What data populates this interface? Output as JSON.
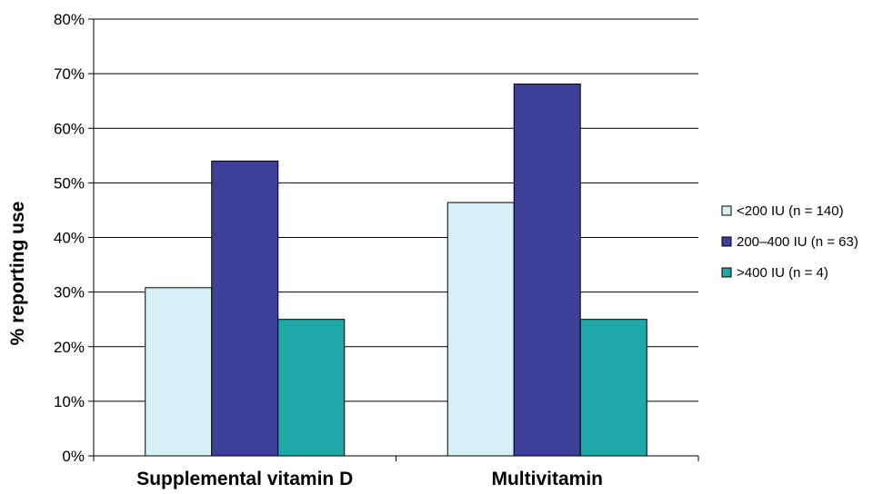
{
  "chart_data": {
    "type": "bar",
    "title": "",
    "xlabel": "",
    "ylabel": "% reporting use",
    "ylim": [
      0,
      80
    ],
    "ytick_step": 10,
    "ytick_suffix": "%",
    "grid": true,
    "legend_position": "right",
    "categories": [
      "Supplemental vitamin D",
      "Multivitamin"
    ],
    "series": [
      {
        "name": "<200 IU (n = 140)",
        "values": [
          30.8,
          46.4
        ],
        "color": "#d6eef5"
      },
      {
        "name": "200–400 IU (n = 63)",
        "values": [
          54,
          68.1
        ],
        "color": "#3e3f97"
      },
      {
        "name": ">400 IU (n = 4)",
        "values": [
          25,
          25
        ],
        "color": "#1ea8a8"
      }
    ]
  }
}
